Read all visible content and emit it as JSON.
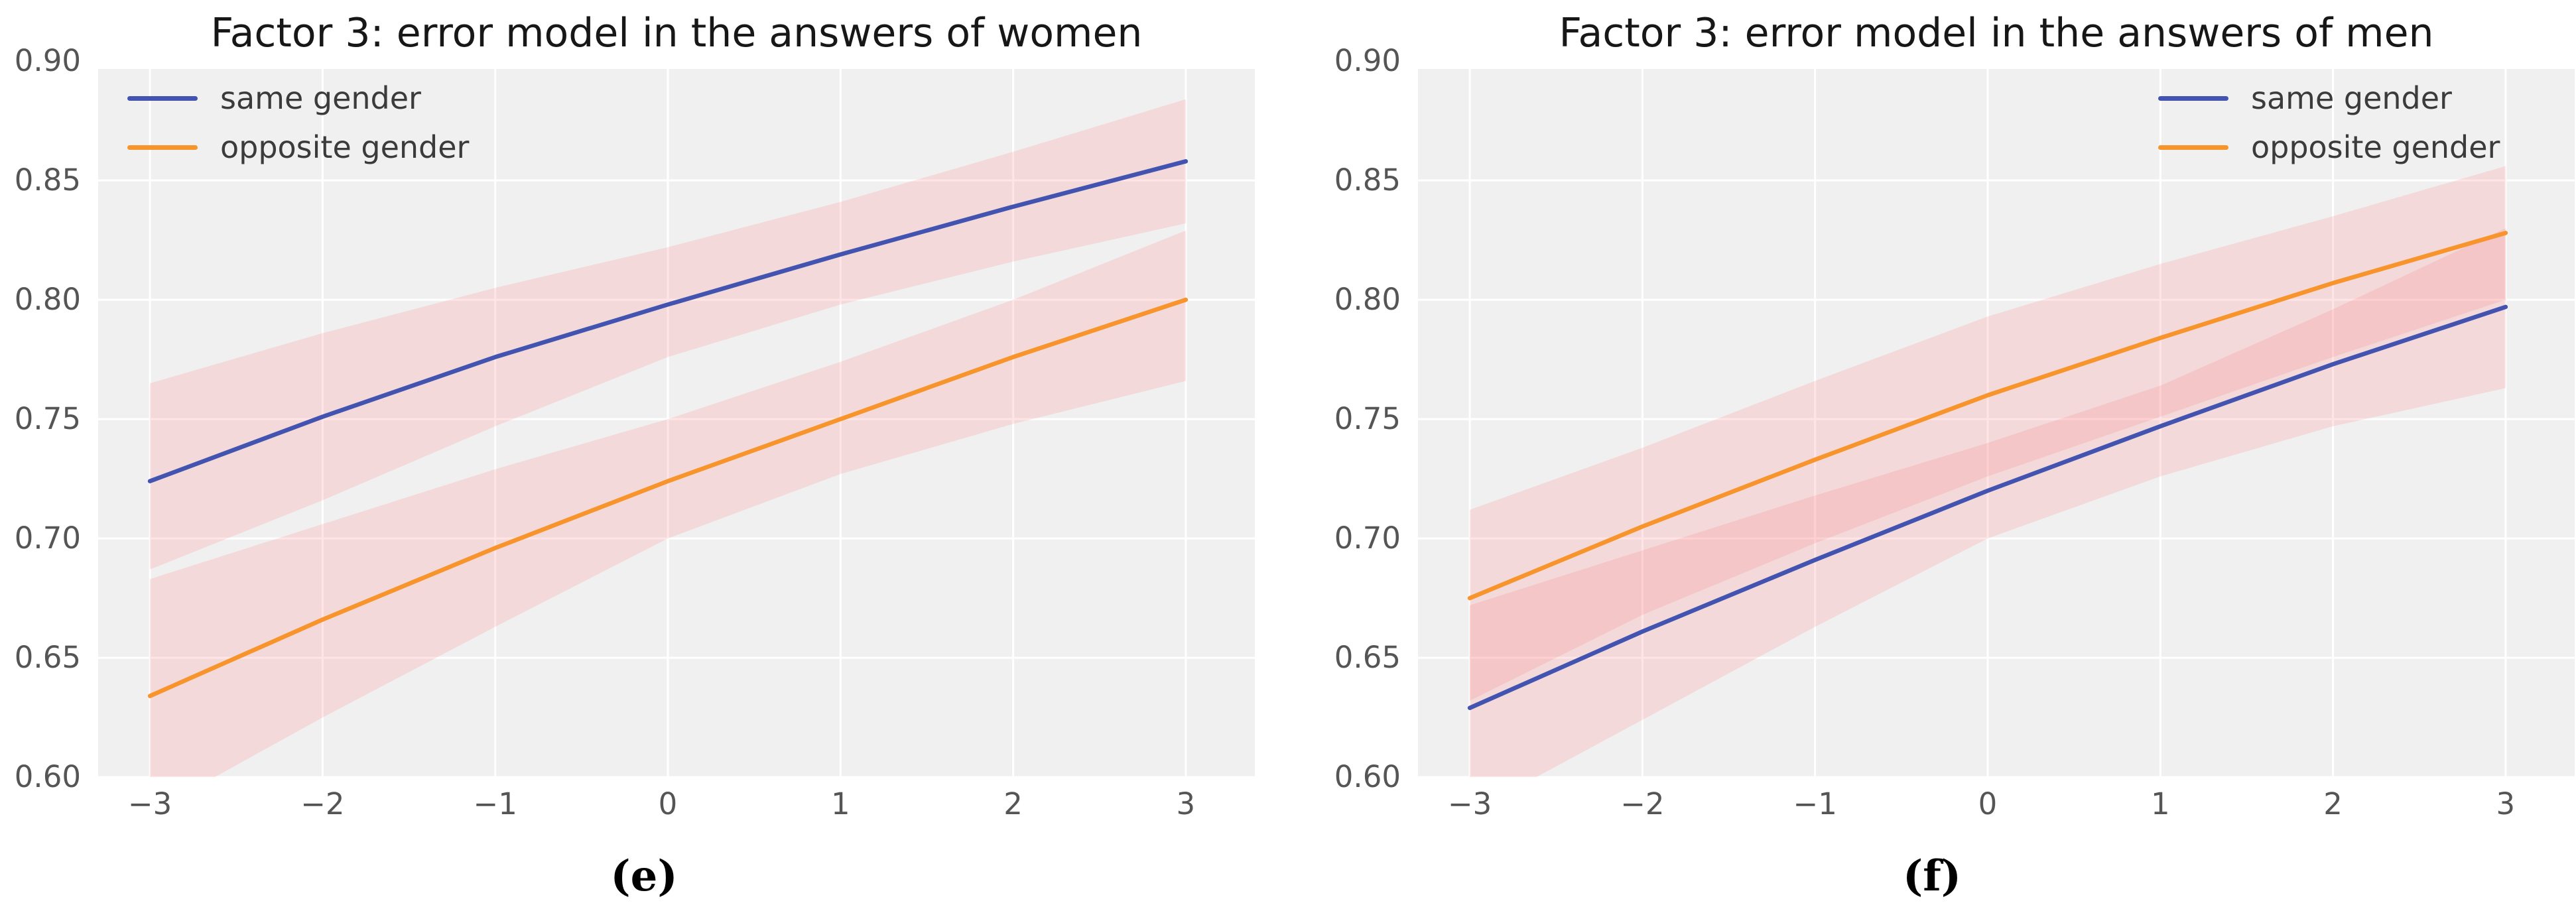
{
  "figure": {
    "background": "#ffffff",
    "plot_background": "#f0f0f1",
    "grid_color": "#ffffff",
    "band_fill": "rgba(255,125,130,0.20)",
    "tick_label_color": "#555555",
    "title_color": "#171717",
    "legend_text_color": "#3b3b3b",
    "caption_color": "#000000",
    "same_gender_color": "#4254b0",
    "opposite_gender_color": "#f7942c"
  },
  "chart_data": [
    {
      "type": "line",
      "title": "Factor 3: error model in the answers of women",
      "caption": "(e)",
      "legend_position": "upper left",
      "grid": true,
      "x": [
        -3,
        -2,
        -1,
        0,
        1,
        2,
        3
      ],
      "xlim": [
        -3.3,
        3.4
      ],
      "ylim": [
        0.6,
        0.9
      ],
      "xtick_vals": [
        -3,
        -2,
        -1,
        0,
        1,
        2,
        3
      ],
      "xtick_labels": [
        "−3",
        "−2",
        "−1",
        "0",
        "1",
        "2",
        "3"
      ],
      "ytick_vals": [
        0.9,
        0.85,
        0.8,
        0.75,
        0.7,
        0.65,
        0.6
      ],
      "ytick_labels": [
        "0.90",
        "0.85",
        "0.80",
        "0.75",
        "0.70",
        "0.65",
        "0.60"
      ],
      "series": [
        {
          "name": "same gender",
          "color": "#4254b0",
          "values": [
            0.724,
            0.751,
            0.776,
            0.798,
            0.819,
            0.839,
            0.858
          ],
          "band_hi": [
            0.765,
            0.786,
            0.805,
            0.822,
            0.841,
            0.862,
            0.884
          ],
          "band_lo": [
            0.687,
            0.716,
            0.747,
            0.776,
            0.798,
            0.816,
            0.832
          ]
        },
        {
          "name": "opposite gender",
          "color": "#f7942c",
          "values": [
            0.634,
            0.666,
            0.696,
            0.724,
            0.75,
            0.776,
            0.8
          ],
          "band_hi": [
            0.683,
            0.706,
            0.729,
            0.75,
            0.774,
            0.8,
            0.829
          ],
          "band_lo": [
            0.585,
            0.625,
            0.663,
            0.7,
            0.727,
            0.748,
            0.766
          ]
        }
      ]
    },
    {
      "type": "line",
      "title": "Factor 3: error model in the answers of men",
      "caption": "(f)",
      "legend_position": "upper right",
      "grid": true,
      "x": [
        -3,
        -2,
        -1,
        0,
        1,
        2,
        3
      ],
      "xlim": [
        -3.3,
        3.4
      ],
      "ylim": [
        0.6,
        0.9
      ],
      "xtick_vals": [
        -3,
        -2,
        -1,
        0,
        1,
        2,
        3
      ],
      "xtick_labels": [
        "−3",
        "−2",
        "−1",
        "0",
        "1",
        "2",
        "3"
      ],
      "ytick_vals": [
        0.9,
        0.85,
        0.8,
        0.75,
        0.7,
        0.65,
        0.6
      ],
      "ytick_labels": [
        "0.90",
        "0.85",
        "0.80",
        "0.75",
        "0.70",
        "0.65",
        "0.60"
      ],
      "series": [
        {
          "name": "same gender",
          "color": "#4254b0",
          "values": [
            0.629,
            0.661,
            0.691,
            0.72,
            0.747,
            0.773,
            0.797
          ],
          "band_hi": [
            0.672,
            0.695,
            0.718,
            0.74,
            0.764,
            0.796,
            0.83
          ],
          "band_lo": [
            0.585,
            0.624,
            0.663,
            0.7,
            0.726,
            0.747,
            0.763
          ]
        },
        {
          "name": "opposite gender",
          "color": "#f7942c",
          "values": [
            0.675,
            0.705,
            0.733,
            0.76,
            0.784,
            0.807,
            0.828
          ],
          "band_hi": [
            0.712,
            0.738,
            0.766,
            0.793,
            0.815,
            0.835,
            0.856
          ],
          "band_lo": [
            0.632,
            0.668,
            0.698,
            0.726,
            0.751,
            0.776,
            0.8
          ]
        }
      ]
    }
  ]
}
